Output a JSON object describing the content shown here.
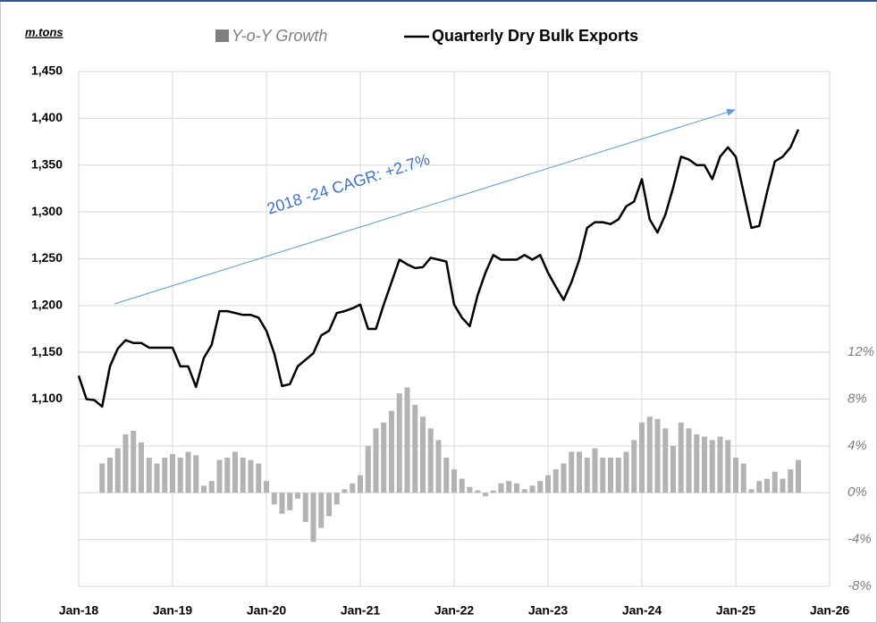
{
  "chart_data": {
    "type": "bar-line",
    "y_axis_label": "m.tons",
    "annotation": "2018 -24 CAGR: +2.7%",
    "x": [
      "2018-01",
      "2018-02",
      "2018-03",
      "2018-04",
      "2018-05",
      "2018-06",
      "2018-07",
      "2018-08",
      "2018-09",
      "2018-10",
      "2018-11",
      "2018-12",
      "2019-01",
      "2019-02",
      "2019-03",
      "2019-04",
      "2019-05",
      "2019-06",
      "2019-07",
      "2019-08",
      "2019-09",
      "2019-10",
      "2019-11",
      "2019-12",
      "2020-01",
      "2020-02",
      "2020-03",
      "2020-04",
      "2020-05",
      "2020-06",
      "2020-07",
      "2020-08",
      "2020-09",
      "2020-10",
      "2020-11",
      "2020-12",
      "2021-01",
      "2021-02",
      "2021-03",
      "2021-04",
      "2021-05",
      "2021-06",
      "2021-07",
      "2021-08",
      "2021-09",
      "2021-10",
      "2021-11",
      "2021-12",
      "2022-01",
      "2022-02",
      "2022-03",
      "2022-04",
      "2022-05",
      "2022-06",
      "2022-07",
      "2022-08",
      "2022-09",
      "2022-10",
      "2022-11",
      "2022-12",
      "2023-01",
      "2023-02",
      "2023-03",
      "2023-04",
      "2023-05",
      "2023-06",
      "2023-07",
      "2023-08",
      "2023-09",
      "2023-10",
      "2023-11",
      "2023-12",
      "2024-01",
      "2024-02",
      "2024-03",
      "2024-04",
      "2024-05",
      "2024-06",
      "2024-07",
      "2024-08",
      "2024-09",
      "2024-10",
      "2024-11",
      "2024-12",
      "2025-01",
      "2025-02",
      "2025-03",
      "2025-04",
      "2025-05",
      "2025-06",
      "2025-07",
      "2025-08",
      "2025-09"
    ],
    "series": [
      {
        "name": "Y-o-Y Growth",
        "type": "bar",
        "axis": "y2",
        "color": "#b3b3b3",
        "values": [
          null,
          null,
          null,
          2.5,
          3.0,
          3.8,
          5.0,
          5.3,
          4.3,
          3.0,
          2.5,
          3.0,
          3.3,
          3.0,
          3.5,
          3.2,
          0.6,
          1.0,
          2.8,
          3.0,
          3.5,
          3.0,
          2.8,
          2.5,
          1.0,
          -1.0,
          -1.8,
          -1.5,
          -0.5,
          -2.5,
          -4.2,
          -3.0,
          -2.0,
          -1.0,
          0.3,
          0.8,
          1.5,
          4.0,
          5.5,
          6.0,
          7.0,
          8.5,
          9.0,
          7.5,
          6.5,
          5.5,
          4.5,
          3.0,
          2.0,
          1.2,
          0.5,
          0.2,
          -0.3,
          0.2,
          0.8,
          1.0,
          0.8,
          0.3,
          0.6,
          1.0,
          1.5,
          2.0,
          2.5,
          3.5,
          3.5,
          3.0,
          3.8,
          3.0,
          3.0,
          3.0,
          3.5,
          4.5,
          6.0,
          6.5,
          6.3,
          5.5,
          4.0,
          6.0,
          5.5,
          5.0,
          4.8,
          4.5,
          4.8,
          4.5,
          3.0,
          2.5,
          0.3,
          1.0,
          1.2,
          1.8,
          1.2,
          2.0,
          2.8
        ]
      },
      {
        "name": "Quarterly Dry Bulk Exports",
        "type": "line",
        "color": "#000000",
        "values": [
          1125,
          1100,
          1099,
          1092,
          1135,
          1154,
          1163,
          1160,
          1160,
          1155,
          1155,
          1155,
          1155,
          1135,
          1135,
          1113,
          1144,
          1158,
          1194,
          1194,
          1192,
          1190,
          1190,
          1187,
          1173,
          1149,
          1114,
          1116,
          1135,
          1142,
          1149,
          1168,
          1173,
          1192,
          1194,
          1197,
          1201,
          1175,
          1175,
          1201,
          1225,
          1249,
          1244,
          1240,
          1241,
          1251,
          1249,
          1247,
          1201,
          1187,
          1178,
          1211,
          1235,
          1254,
          1249,
          1249,
          1249,
          1254,
          1249,
          1254,
          1235,
          1220,
          1206,
          1225,
          1249,
          1283,
          1289,
          1289,
          1287,
          1292,
          1306,
          1311,
          1335,
          1292,
          1278,
          1297,
          1326,
          1359,
          1356,
          1350,
          1350,
          1335,
          1359,
          1369,
          1359,
          1321,
          1283,
          1285,
          1321,
          1354,
          1359,
          1369,
          1388
        ]
      }
    ],
    "xlim": [
      "2018-01",
      "2026-01"
    ],
    "xticks": [
      {
        "value": "2018-01",
        "label": "Jan-18"
      },
      {
        "value": "2019-01",
        "label": "Jan-19"
      },
      {
        "value": "2020-01",
        "label": "Jan-20"
      },
      {
        "value": "2021-01",
        "label": "Jan-21"
      },
      {
        "value": "2022-01",
        "label": "Jan-22"
      },
      {
        "value": "2023-01",
        "label": "Jan-23"
      },
      {
        "value": "2024-01",
        "label": "Jan-24"
      },
      {
        "value": "2025-01",
        "label": "Jan-25"
      },
      {
        "value": "2026-01",
        "label": "Jan-26"
      }
    ],
    "ylim": [
      900,
      1450
    ],
    "yticks": [
      {
        "value": 1100,
        "label": "1,100"
      },
      {
        "value": 1150,
        "label": "1,150"
      },
      {
        "value": 1200,
        "label": "1,200"
      },
      {
        "value": 1250,
        "label": "1,250"
      },
      {
        "value": 1300,
        "label": "1,300"
      },
      {
        "value": 1350,
        "label": "1,350"
      },
      {
        "value": 1400,
        "label": "1,400"
      },
      {
        "value": 1450,
        "label": "1,450"
      }
    ],
    "y2lim": [
      -8,
      36
    ],
    "y2ticks": [
      {
        "value": -8,
        "label": "-8%"
      },
      {
        "value": -4,
        "label": "-4%"
      },
      {
        "value": 0,
        "label": "0%"
      },
      {
        "value": 4,
        "label": "4%"
      },
      {
        "value": 8,
        "label": "8%"
      },
      {
        "value": 12,
        "label": "12%"
      }
    ],
    "grid": true
  }
}
